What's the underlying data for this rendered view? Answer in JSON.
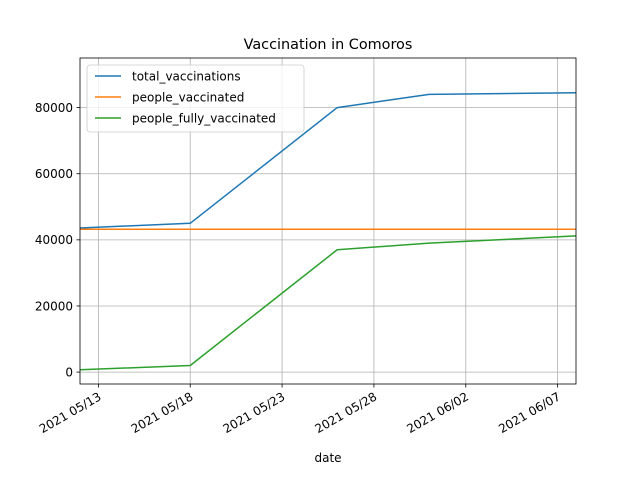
{
  "chart_data": {
    "type": "line",
    "title": "Vaccination in Comoros",
    "xlabel": "date",
    "ylabel": "",
    "x": [
      "2021-05-12",
      "2021-05-18",
      "2021-05-26",
      "2021-05-31",
      "2021-06-08"
    ],
    "series": [
      {
        "name": "total_vaccinations",
        "color": "#1f77b4",
        "values": [
          43600,
          45000,
          80000,
          84000,
          84500
        ]
      },
      {
        "name": "people_vaccinated",
        "color": "#ff7f0e",
        "values": [
          43200,
          43200,
          43200,
          43200,
          43200
        ]
      },
      {
        "name": "people_fully_vaccinated",
        "color": "#2ca02c",
        "values": [
          700,
          2000,
          37000,
          39000,
          41200
        ]
      }
    ],
    "x_ticks": [
      "2021 05/13",
      "2021 05/18",
      "2021 05/23",
      "2021 05/28",
      "2021 06/02",
      "2021 06/07"
    ],
    "y_ticks": [
      "0",
      "20000",
      "40000",
      "60000",
      "80000"
    ],
    "ylim": [
      -3600,
      95000
    ],
    "xlim": [
      "2021-05-12",
      "2021-06-08"
    ],
    "grid": true,
    "legend_position": "top-left"
  }
}
